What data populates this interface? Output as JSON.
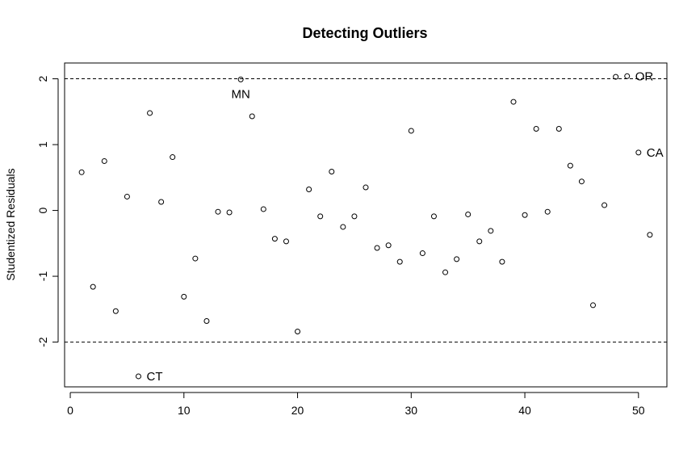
{
  "chart_data": {
    "type": "scatter",
    "title": "Detecting Outliers",
    "xlabel": "",
    "ylabel": "Studentized Residuals",
    "xlim": [
      -0.5,
      52.5
    ],
    "ylim": [
      -2.68,
      2.24
    ],
    "x_ticks": [
      0,
      10,
      20,
      30,
      40,
      50
    ],
    "y_ticks": [
      -2,
      -1,
      0,
      1,
      2
    ],
    "x_tick_labels": [
      "0",
      "10",
      "20",
      "30",
      "40",
      "50"
    ],
    "y_tick_labels": [
      "-2",
      "-1",
      "0",
      "1",
      "2"
    ],
    "reference_lines": [
      2,
      -2
    ],
    "grid": false,
    "x": [
      1,
      2,
      3,
      4,
      5,
      6,
      7,
      8,
      9,
      10,
      11,
      12,
      13,
      14,
      15,
      16,
      17,
      18,
      19,
      20,
      21,
      22,
      23,
      24,
      25,
      26,
      27,
      28,
      29,
      30,
      31,
      32,
      33,
      34,
      35,
      36,
      37,
      38,
      39,
      40,
      41,
      42,
      43,
      44,
      45,
      46,
      47,
      48,
      49,
      50,
      51
    ],
    "y": [
      0.58,
      -1.16,
      0.75,
      -1.53,
      0.21,
      -2.52,
      1.48,
      0.13,
      0.81,
      -1.31,
      -0.73,
      -1.68,
      -0.02,
      -0.03,
      1.99,
      1.43,
      0.02,
      -0.43,
      -0.47,
      -1.84,
      0.32,
      -0.09,
      0.59,
      -0.25,
      -0.09,
      0.35,
      -0.57,
      -0.53,
      -0.78,
      1.21,
      -0.65,
      -0.09,
      -0.94,
      -0.74,
      -0.06,
      -0.47,
      -0.31,
      -0.78,
      1.65,
      -0.07,
      1.24,
      -0.02,
      1.24,
      0.68,
      0.44,
      -1.44,
      0.08,
      2.03,
      2.04,
      0.88,
      -0.37
    ],
    "point_labels": [
      {
        "index": 6,
        "text": "CT",
        "pos": "right"
      },
      {
        "index": 15,
        "text": "MN",
        "pos": "below"
      },
      {
        "index": 49,
        "text": "OR",
        "pos": "right"
      },
      {
        "index": 50,
        "text": "CA",
        "pos": "right"
      }
    ]
  }
}
